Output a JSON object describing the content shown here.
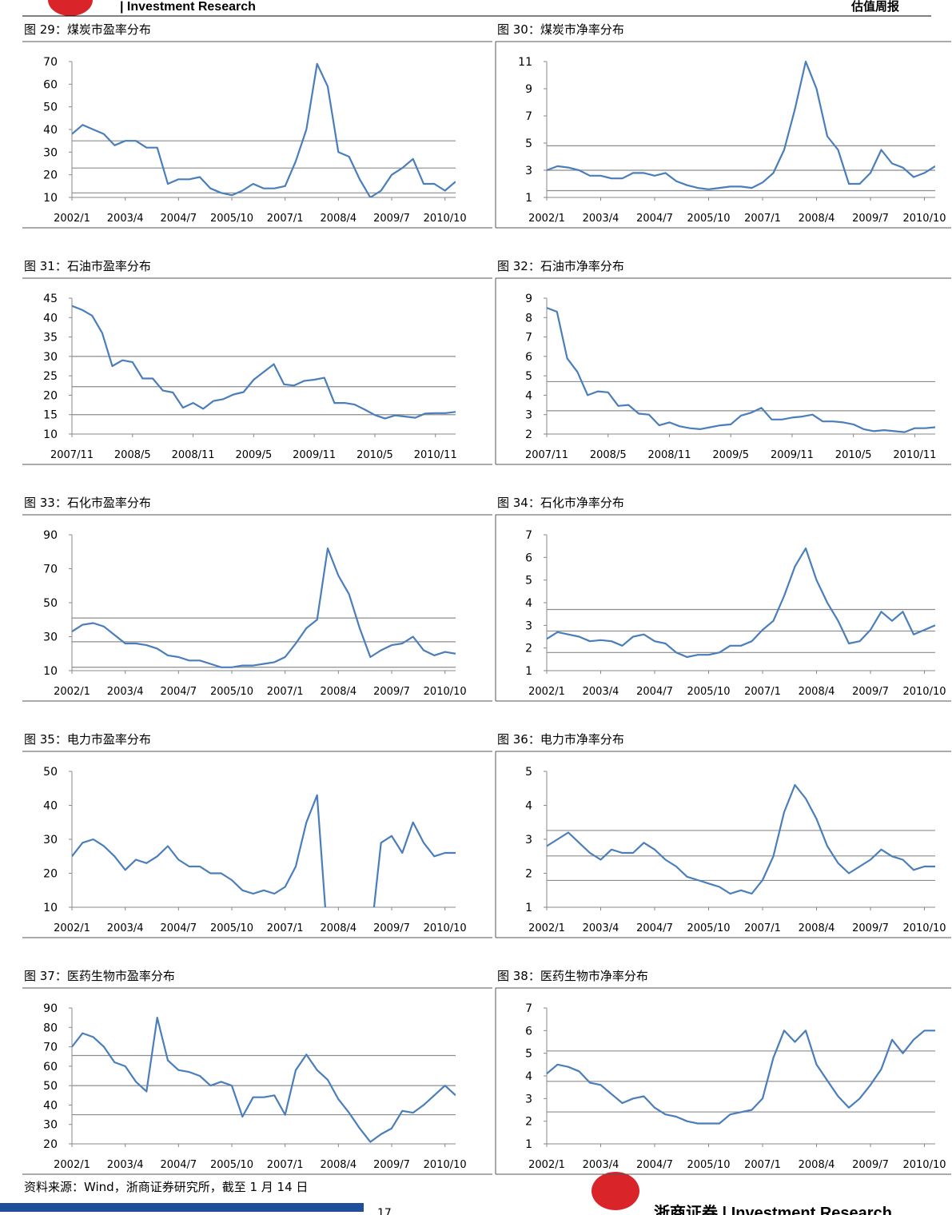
{
  "header": {
    "brand": "| Investment Research",
    "report": "估值周报"
  },
  "footer": {
    "source": "资料来源：Wind，浙商证券研究所，截至 1 月 14 日",
    "page": "17",
    "brand": "浙商证券 | Investment Research"
  },
  "chart_data": [
    {
      "type": "line",
      "title": "图 29：煤炭市盈率分布",
      "x": [
        "2002/1",
        "2002/4",
        "2002/7",
        "2002/10",
        "2003/1",
        "2003/4",
        "2003/7",
        "2003/10",
        "2004/1",
        "2004/4",
        "2004/7",
        "2004/10",
        "2005/1",
        "2005/4",
        "2005/7",
        "2005/10",
        "2006/1",
        "2006/4",
        "2006/7",
        "2006/10",
        "2007/1",
        "2007/4",
        "2007/7",
        "2007/10",
        "2008/1",
        "2008/4",
        "2008/7",
        "2008/10",
        "2009/1",
        "2009/4",
        "2009/7",
        "2009/10",
        "2010/1",
        "2010/4",
        "2010/7",
        "2010/10",
        "2011/1"
      ],
      "values": [
        38,
        42,
        40,
        38,
        33,
        35,
        35,
        32,
        32,
        16,
        18,
        18,
        19,
        14,
        12,
        11,
        13,
        16,
        14,
        14,
        15,
        26,
        40,
        69,
        59,
        30,
        28,
        18,
        10,
        13,
        20,
        23,
        27,
        16,
        16,
        13,
        17
      ],
      "color": "#4a7ebb",
      "reference_lines": [
        35,
        23,
        12
      ],
      "xlim": [
        "2002/1",
        "2011/1"
      ],
      "xticks": [
        "2002/1",
        "2003/4",
        "2004/7",
        "2005/10",
        "2007/1",
        "2008/4",
        "2009/7",
        "2010/10"
      ],
      "ylim": [
        10,
        70
      ],
      "yticks": [
        10,
        20,
        30,
        40,
        50,
        60,
        70
      ]
    },
    {
      "type": "line",
      "title": "图 30：煤炭市净率分布",
      "x": [
        "2002/1",
        "2002/4",
        "2002/7",
        "2002/10",
        "2003/1",
        "2003/4",
        "2003/7",
        "2003/10",
        "2004/1",
        "2004/4",
        "2004/7",
        "2004/10",
        "2005/1",
        "2005/4",
        "2005/7",
        "2005/10",
        "2006/1",
        "2006/4",
        "2006/7",
        "2006/10",
        "2007/1",
        "2007/4",
        "2007/7",
        "2007/10",
        "2008/1",
        "2008/4",
        "2008/7",
        "2008/10",
        "2009/1",
        "2009/4",
        "2009/7",
        "2009/10",
        "2010/1",
        "2010/4",
        "2010/7",
        "2010/10",
        "2011/1"
      ],
      "values": [
        3.0,
        3.3,
        3.2,
        3.0,
        2.6,
        2.6,
        2.4,
        2.4,
        2.8,
        2.8,
        2.6,
        2.8,
        2.2,
        1.9,
        1.7,
        1.6,
        1.7,
        1.8,
        1.8,
        1.7,
        2.1,
        2.8,
        4.5,
        7.5,
        11,
        9,
        5.5,
        4.5,
        2.0,
        2.0,
        2.8,
        4.5,
        3.5,
        3.2,
        2.5,
        2.8,
        3.3
      ],
      "color": "#4a7ebb",
      "reference_lines": [
        4.8,
        3.0,
        1.5
      ],
      "xlim": [
        "2002/1",
        "2011/1"
      ],
      "xticks": [
        "2002/1",
        "2003/4",
        "2004/7",
        "2005/10",
        "2007/1",
        "2008/4",
        "2009/7",
        "2010/10"
      ],
      "ylim": [
        1,
        11
      ],
      "yticks": [
        1,
        3,
        5,
        7,
        9,
        11
      ]
    },
    {
      "type": "line",
      "title": "图 31：石油市盈率分布",
      "x": [
        "2007/11",
        "2007/12",
        "2008/1",
        "2008/2",
        "2008/3",
        "2008/4",
        "2008/5",
        "2008/6",
        "2008/7",
        "2008/8",
        "2008/9",
        "2008/10",
        "2008/11",
        "2008/12",
        "2009/1",
        "2009/2",
        "2009/3",
        "2009/4",
        "2009/5",
        "2009/6",
        "2009/7",
        "2009/8",
        "2009/9",
        "2009/10",
        "2009/11",
        "2009/12",
        "2010/1",
        "2010/2",
        "2010/3",
        "2010/4",
        "2010/5",
        "2010/6",
        "2010/7",
        "2010/8",
        "2010/9",
        "2010/10",
        "2010/11",
        "2010/12",
        "2011/1"
      ],
      "values": [
        43,
        42,
        40.5,
        36,
        27.5,
        29,
        28.5,
        24.3,
        24.3,
        21.2,
        20.7,
        16.8,
        18,
        16.5,
        18.5,
        19,
        20.2,
        20.8,
        24,
        26,
        28,
        22.8,
        22.5,
        23.7,
        24,
        24.5,
        18,
        18,
        17.6,
        16.3,
        14.9,
        14,
        14.8,
        14.5,
        14.2,
        15.3,
        15.4,
        15.4,
        15.7
      ],
      "color": "#4a7ebb",
      "reference_lines": [
        30,
        22.2,
        15
      ],
      "xlim": [
        "2007/11",
        "2011/1"
      ],
      "xticks": [
        "2007/11",
        "2008/5",
        "2008/11",
        "2009/5",
        "2009/11",
        "2010/5",
        "2010/11"
      ],
      "ylim": [
        10,
        45
      ],
      "yticks": [
        10,
        15,
        20,
        25,
        30,
        35,
        40,
        45
      ]
    },
    {
      "type": "line",
      "title": "图 32：石油市净率分布",
      "x": [
        "2007/11",
        "2007/12",
        "2008/1",
        "2008/2",
        "2008/3",
        "2008/4",
        "2008/5",
        "2008/6",
        "2008/7",
        "2008/8",
        "2008/9",
        "2008/10",
        "2008/11",
        "2008/12",
        "2009/1",
        "2009/2",
        "2009/3",
        "2009/4",
        "2009/5",
        "2009/6",
        "2009/7",
        "2009/8",
        "2009/9",
        "2009/10",
        "2009/11",
        "2009/12",
        "2010/1",
        "2010/2",
        "2010/3",
        "2010/4",
        "2010/5",
        "2010/6",
        "2010/7",
        "2010/8",
        "2010/9",
        "2010/10",
        "2010/11",
        "2010/12",
        "2011/1"
      ],
      "values": [
        8.5,
        8.3,
        5.9,
        5.2,
        4.0,
        4.2,
        4.15,
        3.45,
        3.5,
        3.05,
        3.0,
        2.45,
        2.6,
        2.4,
        2.3,
        2.25,
        2.35,
        2.45,
        2.5,
        2.95,
        3.1,
        3.35,
        2.75,
        2.75,
        2.85,
        2.9,
        3.0,
        2.65,
        2.65,
        2.6,
        2.5,
        2.25,
        2.15,
        2.2,
        2.15,
        2.1,
        2.3,
        2.3,
        2.35
      ],
      "color": "#4a7ebb",
      "reference_lines": [
        4.7,
        3.2
      ],
      "xlim": [
        "2007/11",
        "2011/1"
      ],
      "xticks": [
        "2007/11",
        "2008/5",
        "2008/11",
        "2009/5",
        "2009/11",
        "2010/5",
        "2010/11"
      ],
      "ylim": [
        2,
        9
      ],
      "yticks": [
        2,
        3,
        4,
        5,
        6,
        7,
        8,
        9
      ]
    },
    {
      "type": "line",
      "title": "图 33：石化市盈率分布",
      "x": [
        "2002/1",
        "2002/4",
        "2002/7",
        "2002/10",
        "2003/1",
        "2003/4",
        "2003/7",
        "2003/10",
        "2004/1",
        "2004/4",
        "2004/7",
        "2004/10",
        "2005/1",
        "2005/4",
        "2005/7",
        "2005/10",
        "2006/1",
        "2006/4",
        "2006/7",
        "2006/10",
        "2007/1",
        "2007/4",
        "2007/7",
        "2007/10",
        "2008/1",
        "2008/4",
        "2008/7",
        "2008/10",
        "2009/1",
        "2009/4",
        "2009/7",
        "2009/10",
        "2010/1",
        "2010/4",
        "2010/7",
        "2010/10",
        "2011/1"
      ],
      "values": [
        33,
        37,
        38,
        36,
        31,
        26,
        26,
        25,
        23,
        19,
        18,
        16,
        16,
        14,
        12,
        12,
        13,
        13,
        14,
        15,
        18,
        26,
        35,
        40,
        82,
        66,
        55,
        35,
        18,
        22,
        25,
        26,
        30,
        22,
        19,
        21,
        20
      ],
      "color": "#4a7ebb",
      "reference_lines": [
        41,
        27,
        12
      ],
      "xlim": [
        "2002/1",
        "2011/1"
      ],
      "xticks": [
        "2002/1",
        "2003/4",
        "2004/7",
        "2005/10",
        "2007/1",
        "2008/4",
        "2009/7",
        "2010/10"
      ],
      "ylim": [
        10,
        90
      ],
      "yticks": [
        10,
        30,
        50,
        70,
        90
      ]
    },
    {
      "type": "line",
      "title": "图 34：石化市净率分布",
      "x": [
        "2002/1",
        "2002/4",
        "2002/7",
        "2002/10",
        "2003/1",
        "2003/4",
        "2003/7",
        "2003/10",
        "2004/1",
        "2004/4",
        "2004/7",
        "2004/10",
        "2005/1",
        "2005/4",
        "2005/7",
        "2005/10",
        "2006/1",
        "2006/4",
        "2006/7",
        "2006/10",
        "2007/1",
        "2007/4",
        "2007/7",
        "2007/10",
        "2008/1",
        "2008/4",
        "2008/7",
        "2008/10",
        "2009/1",
        "2009/4",
        "2009/7",
        "2009/10",
        "2010/1",
        "2010/4",
        "2010/7",
        "2010/10",
        "2011/1"
      ],
      "values": [
        2.4,
        2.7,
        2.6,
        2.5,
        2.3,
        2.35,
        2.3,
        2.1,
        2.5,
        2.6,
        2.3,
        2.2,
        1.8,
        1.6,
        1.7,
        1.7,
        1.8,
        2.1,
        2.1,
        2.3,
        2.8,
        3.2,
        4.3,
        5.6,
        6.4,
        5.0,
        4.0,
        3.2,
        2.2,
        2.3,
        2.8,
        3.6,
        3.2,
        3.6,
        2.6,
        2.8,
        3.0
      ],
      "color": "#4a7ebb",
      "reference_lines": [
        3.7,
        2.75,
        1.8
      ],
      "xlim": [
        "2002/1",
        "2011/1"
      ],
      "xticks": [
        "2002/1",
        "2003/4",
        "2004/7",
        "2005/10",
        "2007/1",
        "2008/4",
        "2009/7",
        "2010/10"
      ],
      "ylim": [
        1,
        7
      ],
      "yticks": [
        1,
        2,
        3,
        4,
        5,
        6,
        7
      ]
    },
    {
      "type": "line",
      "title": "图 35：电力市盈率分布",
      "x": [
        "2002/1",
        "2002/4",
        "2002/7",
        "2002/10",
        "2003/1",
        "2003/4",
        "2003/7",
        "2003/10",
        "2004/1",
        "2004/4",
        "2004/7",
        "2004/10",
        "2005/1",
        "2005/4",
        "2005/7",
        "2005/10",
        "2006/1",
        "2006/4",
        "2006/7",
        "2006/10",
        "2007/1",
        "2007/4",
        "2007/7",
        "2007/10",
        "2008/1",
        "2008/4",
        "2008/7",
        "2008/10",
        "2009/1",
        "2009/4",
        "2009/7",
        "2009/10",
        "2010/1",
        "2010/4",
        "2010/7",
        "2010/10",
        "2011/1"
      ],
      "values": [
        25,
        29,
        30,
        28,
        25,
        21,
        24,
        23,
        25,
        28,
        24,
        22,
        22,
        20,
        20,
        18,
        15,
        14,
        15,
        14,
        16,
        22,
        35,
        43,
        0,
        null,
        null,
        null,
        0,
        29,
        31,
        26,
        35,
        29,
        25,
        26,
        26
      ],
      "color": "#4a7ebb",
      "reference_lines": [],
      "xlim": [
        "2002/1",
        "2011/1"
      ],
      "xticks": [
        "2002/1",
        "2003/4",
        "2004/7",
        "2005/10",
        "2007/1",
        "2008/4",
        "2009/7",
        "2010/10"
      ],
      "ylim": [
        10,
        50
      ],
      "yticks": [
        10,
        20,
        30,
        40,
        50
      ]
    },
    {
      "type": "line",
      "title": "图 36：电力市净率分布",
      "x": [
        "2002/1",
        "2002/4",
        "2002/7",
        "2002/10",
        "2003/1",
        "2003/4",
        "2003/7",
        "2003/10",
        "2004/1",
        "2004/4",
        "2004/7",
        "2004/10",
        "2005/1",
        "2005/4",
        "2005/7",
        "2005/10",
        "2006/1",
        "2006/4",
        "2006/7",
        "2006/10",
        "2007/1",
        "2007/4",
        "2007/7",
        "2007/10",
        "2008/1",
        "2008/4",
        "2008/7",
        "2008/10",
        "2009/1",
        "2009/4",
        "2009/7",
        "2009/10",
        "2010/1",
        "2010/4",
        "2010/7",
        "2010/10",
        "2011/1"
      ],
      "values": [
        2.8,
        3.0,
        3.2,
        2.9,
        2.6,
        2.4,
        2.7,
        2.6,
        2.6,
        2.9,
        2.7,
        2.4,
        2.2,
        1.9,
        1.8,
        1.7,
        1.6,
        1.4,
        1.5,
        1.4,
        1.8,
        2.5,
        3.8,
        4.6,
        4.2,
        3.6,
        2.8,
        2.3,
        2.0,
        2.2,
        2.4,
        2.7,
        2.5,
        2.4,
        2.1,
        2.2,
        2.2
      ],
      "color": "#4a7ebb",
      "reference_lines": [
        3.26,
        2.51,
        1.79
      ],
      "xlim": [
        "2002/1",
        "2011/1"
      ],
      "xticks": [
        "2002/1",
        "2003/4",
        "2004/7",
        "2005/10",
        "2007/1",
        "2008/4",
        "2009/7",
        "2010/10"
      ],
      "ylim": [
        1,
        5
      ],
      "yticks": [
        1,
        2,
        3,
        4,
        5
      ]
    },
    {
      "type": "line",
      "title": "图 37：医药生物市盈率分布",
      "x": [
        "2002/1",
        "2002/4",
        "2002/7",
        "2002/10",
        "2003/1",
        "2003/4",
        "2003/7",
        "2003/10",
        "2004/1",
        "2004/4",
        "2004/7",
        "2004/10",
        "2005/1",
        "2005/4",
        "2005/7",
        "2005/10",
        "2006/1",
        "2006/4",
        "2006/7",
        "2006/10",
        "2007/1",
        "2007/4",
        "2007/7",
        "2007/10",
        "2008/1",
        "2008/4",
        "2008/7",
        "2008/10",
        "2009/1",
        "2009/4",
        "2009/7",
        "2009/10",
        "2010/1",
        "2010/4",
        "2010/7",
        "2010/10",
        "2011/1"
      ],
      "values": [
        70,
        77,
        75,
        70,
        62,
        60,
        52,
        47,
        85,
        63,
        58,
        57,
        55,
        50,
        52,
        50,
        34,
        44,
        44,
        45,
        35,
        58,
        66,
        58,
        53,
        43,
        36,
        28,
        21,
        25,
        28,
        37,
        36,
        40,
        45,
        50,
        45
      ],
      "color": "#4a7ebb",
      "reference_lines": [
        65.5,
        50,
        35
      ],
      "xlim": [
        "2002/1",
        "2011/1"
      ],
      "xticks": [
        "2002/1",
        "2003/4",
        "2004/7",
        "2005/10",
        "2007/1",
        "2008/4",
        "2009/7",
        "2010/10"
      ],
      "ylim": [
        20,
        90
      ],
      "yticks": [
        20,
        30,
        40,
        50,
        60,
        70,
        80,
        90
      ]
    },
    {
      "type": "line",
      "title": "图 38：医药生物市净率分布",
      "x": [
        "2002/1",
        "2002/4",
        "2002/7",
        "2002/10",
        "2003/1",
        "2003/4",
        "2003/7",
        "2003/10",
        "2004/1",
        "2004/4",
        "2004/7",
        "2004/10",
        "2005/1",
        "2005/4",
        "2005/7",
        "2005/10",
        "2006/1",
        "2006/4",
        "2006/7",
        "2006/10",
        "2007/1",
        "2007/4",
        "2007/7",
        "2007/10",
        "2008/1",
        "2008/4",
        "2008/7",
        "2008/10",
        "2009/1",
        "2009/4",
        "2009/7",
        "2009/10",
        "2010/1",
        "2010/4",
        "2010/7",
        "2010/10",
        "2011/1"
      ],
      "values": [
        4.1,
        4.5,
        4.4,
        4.2,
        3.7,
        3.6,
        3.2,
        2.8,
        3.0,
        3.1,
        2.6,
        2.3,
        2.2,
        2.0,
        1.9,
        1.9,
        1.9,
        2.3,
        2.4,
        2.5,
        3.0,
        4.8,
        6.0,
        5.5,
        6.0,
        4.5,
        3.8,
        3.1,
        2.6,
        3.0,
        3.6,
        4.3,
        5.6,
        5.0,
        5.6,
        6.0,
        6.0
      ],
      "color": "#4a7ebb",
      "reference_lines": [
        5.1,
        3.76,
        2.41
      ],
      "xlim": [
        "2002/1",
        "2011/1"
      ],
      "xticks": [
        "2002/1",
        "2003/4",
        "2004/7",
        "2005/10",
        "2007/1",
        "2008/4",
        "2009/7",
        "2010/10"
      ],
      "ylim": [
        1,
        7
      ],
      "yticks": [
        1,
        2,
        3,
        4,
        5,
        6,
        7
      ]
    }
  ]
}
